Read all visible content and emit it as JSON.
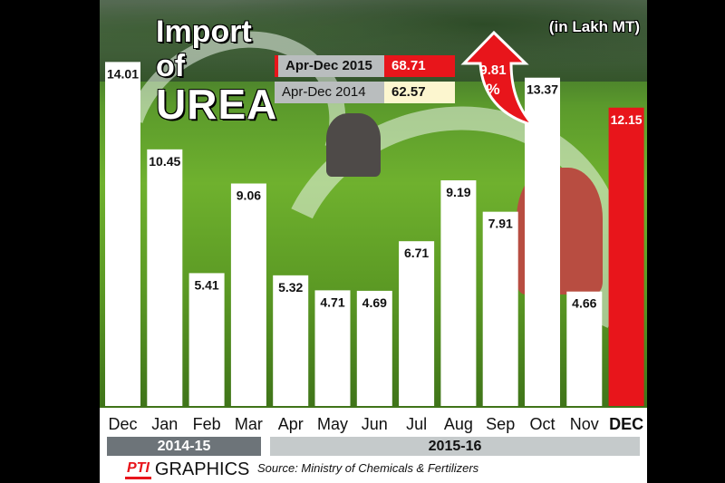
{
  "title": {
    "line1": "Import",
    "line2": "of",
    "line3": "UREA"
  },
  "unit_note": "(in Lakh MT)",
  "comparison": {
    "current": {
      "label": "Apr-Dec 2015",
      "value": "68.71"
    },
    "previous": {
      "label": "Apr-Dec 2014",
      "value": "62.57"
    },
    "change": {
      "value": "9.81",
      "unit": "%"
    }
  },
  "fiscal_years": [
    "2014-15",
    "2015-16"
  ],
  "footer": {
    "logo_mark": "PTI",
    "logo_text": "GRAPHICS",
    "source": "Source: Ministry of Chemicals & Fertilizers"
  },
  "colors": {
    "bar": "#ffffff",
    "highlight": "#e8151b",
    "fy1": "#6d7479",
    "fy2": "#c5cacb"
  },
  "chart_data": {
    "type": "bar",
    "categories": [
      "Dec",
      "Jan",
      "Feb",
      "Mar",
      "Apr",
      "May",
      "Jun",
      "Jul",
      "Aug",
      "Sep",
      "Oct",
      "Nov",
      "DEC"
    ],
    "values": [
      14.01,
      10.45,
      5.41,
      9.06,
      5.32,
      4.71,
      4.69,
      6.71,
      9.19,
      7.91,
      13.37,
      4.66,
      12.15
    ],
    "value_labels": [
      "14.01",
      "10.45",
      "5.41",
      "9.06",
      "5.32",
      "4.71",
      "4.69",
      "6.71",
      "9.19",
      "7.91",
      "13.37",
      "4.66",
      "12.15"
    ],
    "highlight_index": 12,
    "title": "Import of UREA",
    "ylabel": "",
    "xlabel": "",
    "ylim": [
      0,
      15.5
    ]
  }
}
